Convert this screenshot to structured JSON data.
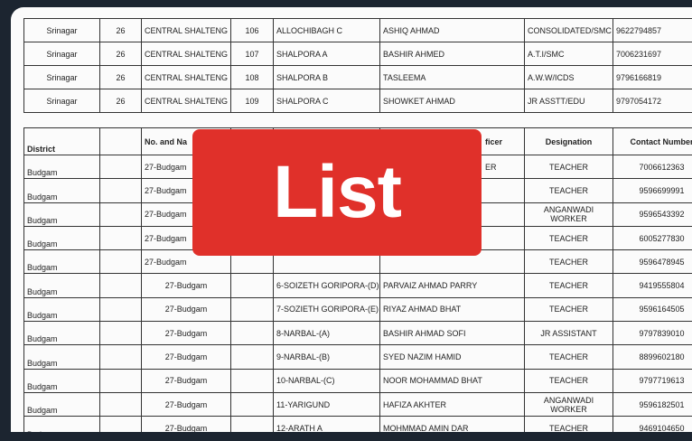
{
  "top_table": {
    "rows": [
      [
        "Srinagar",
        "26",
        "CENTRAL SHALTENG",
        "106",
        "ALLOCHIBAGH C",
        "ASHIQ AHMAD",
        "CONSOLIDATED/SMC",
        "9622794857"
      ],
      [
        "Srinagar",
        "26",
        "CENTRAL SHALTENG",
        "107",
        "SHALPORA A",
        "BASHIR AHMED",
        "A.T.I/SMC",
        "7006231697"
      ],
      [
        "Srinagar",
        "26",
        "CENTRAL SHALTENG",
        "108",
        "SHALPORA B",
        "TASLEEMA",
        "A.W.W/ICDS",
        "9796166819"
      ],
      [
        "Srinagar",
        "26",
        "CENTRAL SHALTENG",
        "109",
        "SHALPORA C",
        "SHOWKET AHMAD",
        "JR ASSTT/EDU",
        "9797054172"
      ]
    ]
  },
  "lower_table": {
    "headers": [
      "District",
      "",
      "No. and Na",
      "",
      "",
      "ficer",
      "Designation",
      "Contact Number"
    ],
    "rows": [
      [
        "Budgam",
        "",
        "27-Budgam",
        "",
        "",
        "ER",
        "TEACHER",
        "7006612363"
      ],
      [
        "Budgam",
        "",
        "27-Budgam",
        "",
        "",
        "",
        "TEACHER",
        "9596699991"
      ],
      [
        "Budgam",
        "",
        "27-Budgam",
        "",
        "",
        "",
        "ANGANWADI WORKER",
        "9596543392"
      ],
      [
        "Budgam",
        "",
        "27-Budgam",
        "",
        "",
        "",
        "TEACHER",
        "6005277830"
      ],
      [
        "Budgam",
        "",
        "27-Budgam",
        "",
        "",
        "",
        "TEACHER",
        "9596478945"
      ],
      [
        "Budgam",
        "",
        "27-Budgam",
        "",
        "6-SOIZETH GORIPORA-(D)",
        "PARVAIZ AHMAD PARRY",
        "TEACHER",
        "9419555804"
      ],
      [
        "Budgam",
        "",
        "27-Budgam",
        "",
        "7-SOZIETH GORIPORA-(E)",
        "RIYAZ AHMAD BHAT",
        "TEACHER",
        "9596164505"
      ],
      [
        "Budgam",
        "",
        "27-Budgam",
        "",
        "8-NARBAL-(A)",
        "BASHIR AHMAD SOFI",
        "JR ASSISTANT",
        "9797839010"
      ],
      [
        "Budgam",
        "",
        "27-Budgam",
        "",
        "9-NARBAL-(B)",
        "SYED NAZIM HAMID",
        "TEACHER",
        "8899602180"
      ],
      [
        "Budgam",
        "",
        "27-Budgam",
        "",
        "10-NARBAL-(C)",
        "NOOR MOHAMMAD BHAT",
        "TEACHER",
        "9797719613"
      ],
      [
        "Budgam",
        "",
        "27-Budgam",
        "",
        "11-YARIGUND",
        "HAFIZA AKHTER",
        "ANGANWADI WORKER",
        "9596182501"
      ],
      [
        "Budgam",
        "",
        "27-Budgam",
        "",
        "12-ARATH A",
        "MOHMMAD AMIN DAR",
        "TEACHER",
        "9469104650"
      ]
    ]
  },
  "badge": {
    "label": "List",
    "color": "#e0302a"
  }
}
